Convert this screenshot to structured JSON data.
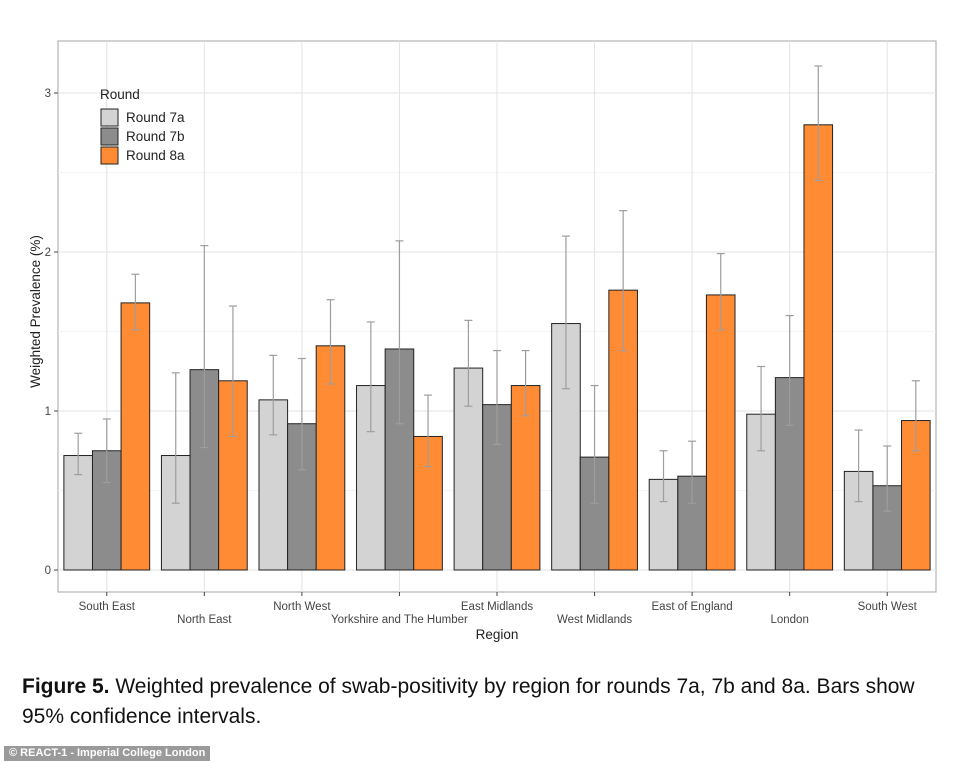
{
  "chart_data": {
    "type": "bar",
    "ylabel": "Weighted Prevalence (%)",
    "xlabel": "Region",
    "ylim": [
      0,
      3.3
    ],
    "yticks": [
      0,
      1,
      2,
      3
    ],
    "grid": true,
    "legend_title": "Round",
    "legend_position": "top-left",
    "categories": [
      "South East",
      "North East",
      "North West",
      "Yorkshire and The Humber",
      "East Midlands",
      "West Midlands",
      "East of England",
      "London",
      "South West"
    ],
    "series": [
      {
        "name": "Round 7a",
        "color": "#d3d3d3",
        "values": [
          0.72,
          0.72,
          1.07,
          1.16,
          1.27,
          1.55,
          0.57,
          0.98,
          0.62
        ],
        "ci_low": [
          0.6,
          0.42,
          0.85,
          0.87,
          1.03,
          1.14,
          0.43,
          0.75,
          0.43
        ],
        "ci_high": [
          0.86,
          1.24,
          1.35,
          1.56,
          1.57,
          2.1,
          0.75,
          1.28,
          0.88
        ]
      },
      {
        "name": "Round 7b",
        "color": "#8c8c8c",
        "values": [
          0.75,
          1.26,
          0.92,
          1.39,
          1.04,
          0.71,
          0.59,
          1.21,
          0.53
        ],
        "ci_low": [
          0.55,
          0.77,
          0.63,
          0.92,
          0.79,
          0.42,
          0.42,
          0.91,
          0.37
        ],
        "ci_high": [
          0.95,
          2.04,
          1.33,
          2.07,
          1.38,
          1.16,
          0.81,
          1.6,
          0.78
        ]
      },
      {
        "name": "Round 8a",
        "color": "#ff8b35",
        "values": [
          1.68,
          1.19,
          1.41,
          0.84,
          1.16,
          1.76,
          1.73,
          2.8,
          0.94
        ],
        "ci_low": [
          1.51,
          0.84,
          1.17,
          0.65,
          0.97,
          1.38,
          1.51,
          2.45,
          0.75
        ],
        "ci_high": [
          1.86,
          1.66,
          1.7,
          1.1,
          1.38,
          2.26,
          1.99,
          3.17,
          1.19
        ]
      }
    ]
  },
  "caption": {
    "label": "Figure 5.",
    "text": " Weighted prevalence of swab-positivity by region for rounds 7a, 7b and 8a. Bars show 95% confidence intervals."
  },
  "credit": "© REACT-1 - Imperial College London"
}
